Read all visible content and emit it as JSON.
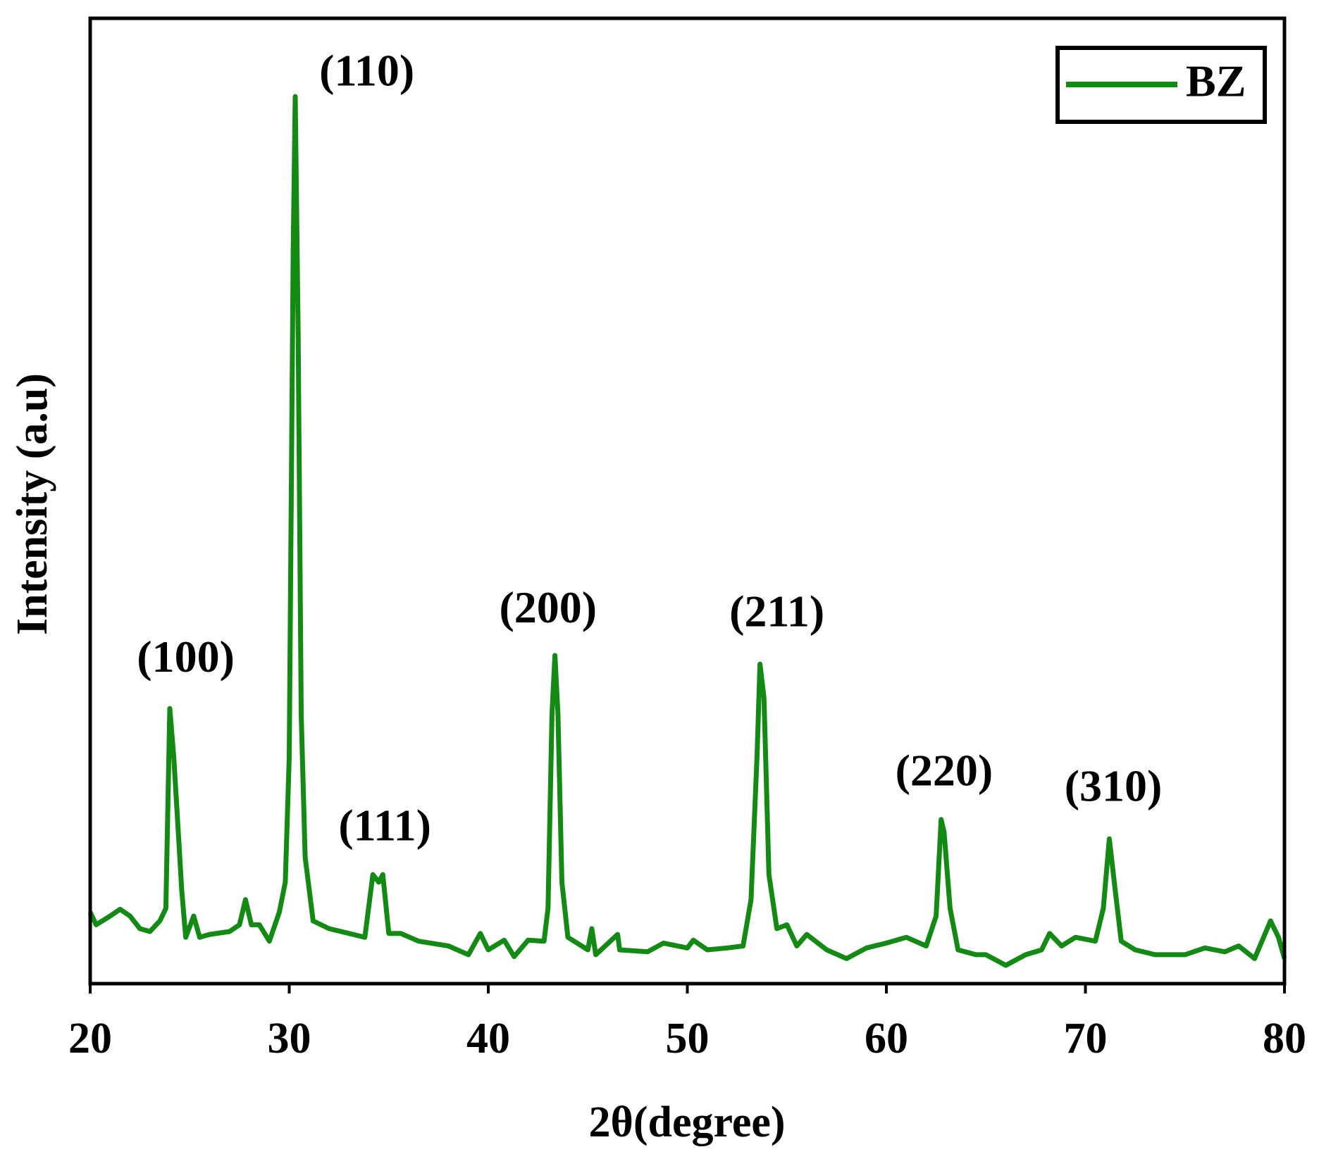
{
  "chart_data": {
    "type": "line",
    "xlabel": "2θ(degree)",
    "ylabel": "Intensity (a.u)",
    "xlim": [
      20,
      80
    ],
    "xticks": [
      20,
      30,
      40,
      50,
      60,
      70,
      80
    ],
    "ylim": [
      0,
      100
    ],
    "legend": "upper right",
    "series": [
      {
        "name": "BZ",
        "color": "#138a13",
        "x": [
          20,
          20.3,
          21,
          21.5,
          22,
          22.5,
          23,
          23.5,
          23.8,
          24.0,
          24.2,
          24.4,
          24.6,
          24.8,
          25.2,
          25.5,
          26,
          27,
          27.5,
          27.8,
          28.1,
          28.5,
          29,
          29.5,
          29.8,
          30.0,
          30.2,
          30.3,
          30.45,
          30.6,
          30.8,
          31.2,
          32,
          33,
          33.8,
          34.2,
          34.5,
          34.7,
          35.0,
          35.6,
          36.5,
          38,
          39,
          39.6,
          40,
          40.8,
          41.3,
          42,
          42.8,
          43.0,
          43.2,
          43.35,
          43.5,
          43.7,
          44,
          45,
          45.2,
          45.4,
          46.5,
          46.6,
          48,
          48.8,
          50,
          50.3,
          51,
          52,
          52.8,
          53.2,
          53.5,
          53.65,
          53.85,
          54.1,
          54.5,
          55,
          55.5,
          56,
          57,
          58,
          59,
          60,
          61,
          62,
          62.5,
          62.75,
          62.9,
          63.2,
          63.6,
          64.5,
          65,
          66,
          67,
          67.8,
          68.2,
          68.8,
          69.5,
          70.5,
          70.9,
          71.2,
          71.5,
          71.8,
          72.5,
          73.5,
          75,
          76,
          77,
          77.7,
          78.5,
          79.3,
          79.7,
          80
        ],
        "values": [
          7.4,
          6.1,
          7.0,
          7.7,
          7.0,
          5.7,
          5.4,
          6.5,
          7.8,
          28.5,
          23.5,
          16.6,
          9.6,
          4.8,
          7.0,
          4.8,
          5.1,
          5.4,
          6.1,
          8.7,
          6.1,
          6.1,
          4.4,
          7.4,
          10.5,
          23.5,
          75.8,
          91.9,
          67.1,
          27.9,
          13.1,
          6.5,
          5.7,
          5.2,
          4.8,
          11.3,
          10.5,
          11.3,
          5.2,
          5.2,
          4.4,
          3.9,
          3.0,
          5.2,
          3.5,
          4.5,
          2.8,
          4.5,
          4.4,
          7.8,
          27.9,
          34.0,
          27.9,
          10.5,
          4.8,
          3.5,
          5.7,
          3.0,
          5.1,
          3.5,
          3.3,
          4.2,
          3.7,
          4.5,
          3.5,
          3.7,
          3.9,
          8.7,
          23.5,
          33.1,
          29.6,
          11.3,
          5.7,
          6.1,
          3.9,
          5.1,
          3.5,
          2.6,
          3.7,
          4.2,
          4.8,
          3.9,
          7.0,
          17.0,
          15.7,
          7.8,
          3.5,
          3.0,
          3.0,
          1.9,
          3.0,
          3.5,
          5.2,
          3.9,
          4.8,
          4.4,
          7.8,
          15.0,
          9.6,
          4.4,
          3.5,
          3.0,
          3.0,
          3.7,
          3.3,
          3.9,
          2.6,
          6.5,
          4.8,
          2.6
        ]
      }
    ],
    "annotations": [
      {
        "text": "(100)",
        "x": 24.8,
        "y": 33.4
      },
      {
        "text": "(110)",
        "x": 33.9,
        "y": 94.1
      },
      {
        "text": "(111)",
        "x": 34.8,
        "y": 15.9
      },
      {
        "text": "(200)",
        "x": 43.0,
        "y": 38.5
      },
      {
        "text": "(211)",
        "x": 54.5,
        "y": 38.1
      },
      {
        "text": "(220)",
        "x": 62.9,
        "y": 21.6
      },
      {
        "text": "(310)",
        "x": 71.4,
        "y": 20.0
      }
    ]
  }
}
